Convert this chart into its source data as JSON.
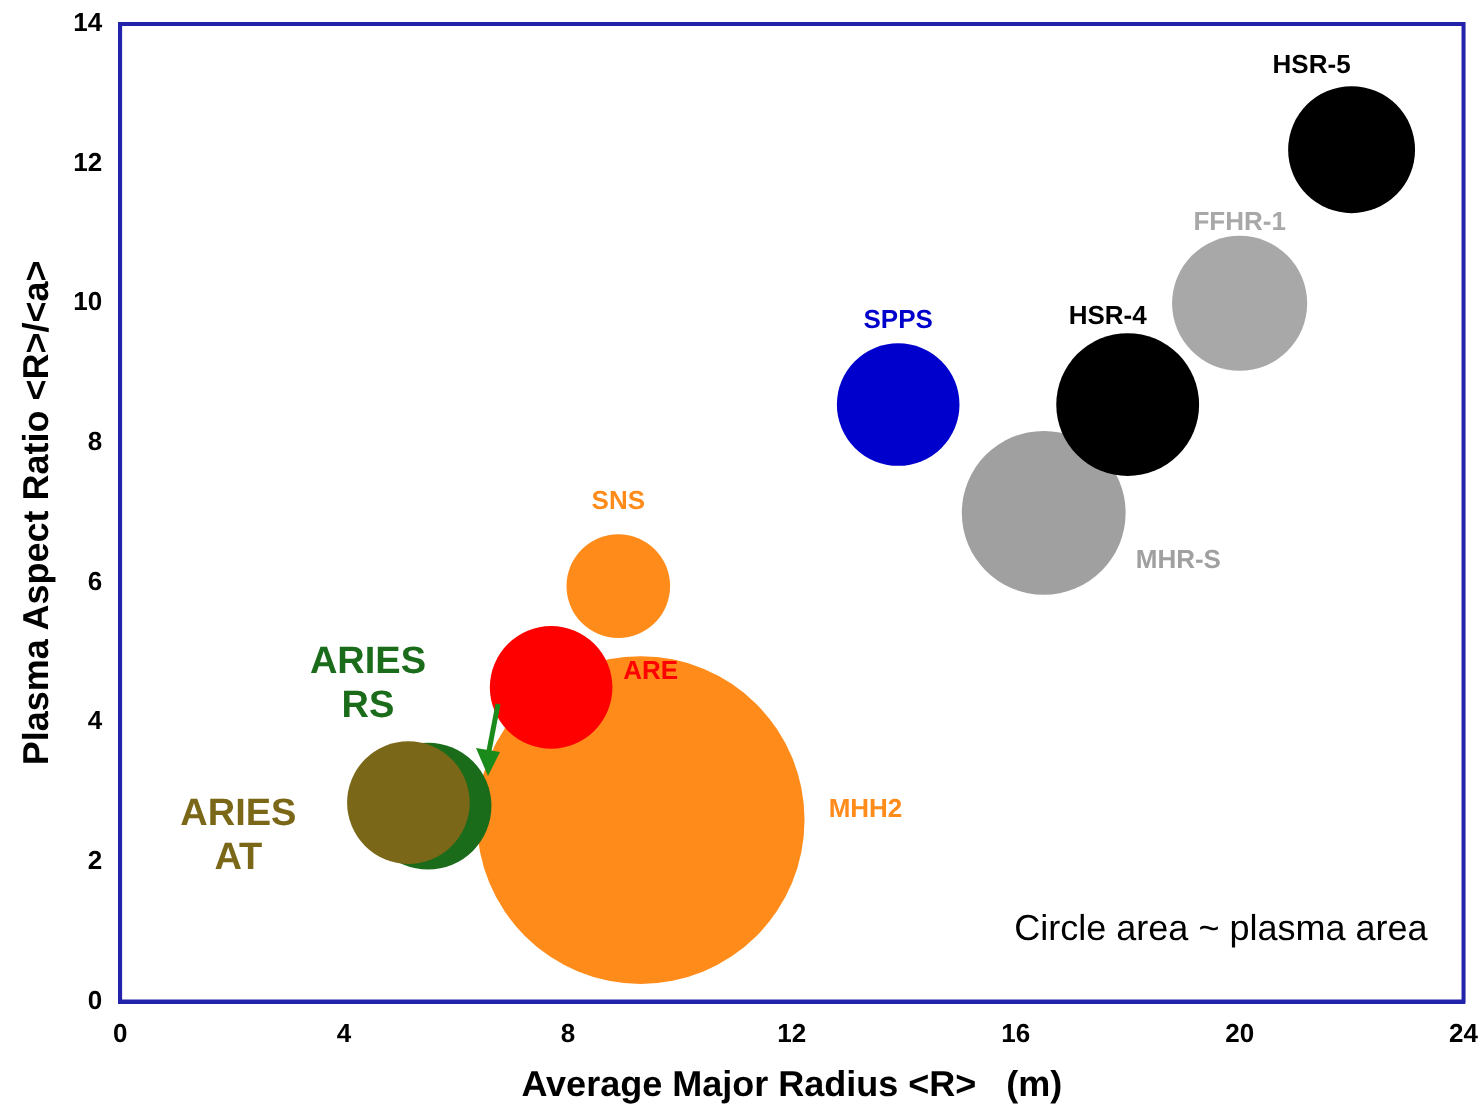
{
  "chart_data": {
    "type": "bubble",
    "xlabel": "Average Major Radius <R>   (m)",
    "ylabel": "Plasma Aspect Ratio <R>/<a>",
    "xlim": [
      0,
      24
    ],
    "xticks": [
      0,
      4,
      8,
      12,
      16,
      20,
      24
    ],
    "ylim": [
      0,
      14
    ],
    "yticks": [
      0,
      2,
      4,
      6,
      8,
      10,
      12,
      14
    ],
    "grid": false,
    "legend": false,
    "annotations": [
      "Circle area ~ plasma area"
    ],
    "series": [
      {
        "name": "MHH2",
        "color": "#ff8c1a",
        "x": [
          9.3
        ],
        "values": [
          2.6
        ],
        "sizes": [
          1
        ]
      },
      {
        "name": "ARE",
        "color": "#ff0000",
        "x": [
          7.7
        ],
        "values": [
          4.5
        ],
        "sizes": [
          0.14
        ]
      },
      {
        "name": "SNS",
        "color": "#ff8c1a",
        "x": [
          8.9
        ],
        "values": [
          5.95
        ],
        "sizes": [
          0.1
        ]
      },
      {
        "name": "ARIES RS",
        "color": "#1a6b1a",
        "x": [
          5.5
        ],
        "values": [
          2.8
        ],
        "sizes": [
          0.15
        ]
      },
      {
        "name": "ARIES AT",
        "color": "#7a6818",
        "x": [
          5.15
        ],
        "values": [
          2.85
        ],
        "sizes": [
          0.14
        ]
      },
      {
        "name": "MHR-S",
        "color": "#a0a0a0",
        "x": [
          16.5
        ],
        "values": [
          7
        ],
        "sizes": [
          0.25
        ]
      },
      {
        "name": "HSR-4",
        "color": "#000000",
        "x": [
          18
        ],
        "values": [
          8.55
        ],
        "sizes": [
          0.19
        ]
      },
      {
        "name": "SPPS",
        "color": "#0000cc",
        "x": [
          13.9
        ],
        "values": [
          8.55
        ],
        "sizes": [
          0.14
        ]
      },
      {
        "name": "FFHR-1",
        "color": "#a8a8a8",
        "x": [
          20
        ],
        "values": [
          10
        ],
        "sizes": [
          0.17
        ]
      },
      {
        "name": "HSR-5",
        "color": "#000000",
        "x": [
          22
        ],
        "values": [
          12.2
        ],
        "sizes": [
          0.15
        ]
      }
    ]
  }
}
